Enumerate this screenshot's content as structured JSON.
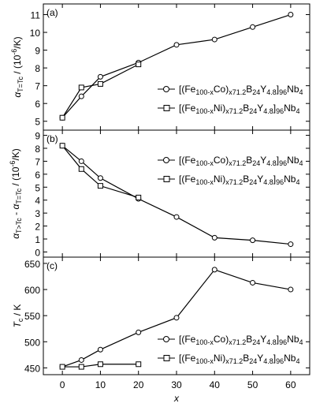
{
  "chart_data": [
    {
      "type": "line",
      "panel_label": "(a)",
      "ylabel": [
        {
          "text": "α",
          "style": "i"
        },
        {
          "text": "T=Tc",
          "style": "sub"
        },
        {
          "text": " / (10",
          "style": ""
        },
        {
          "text": "-6",
          "style": "sup"
        },
        {
          "text": "/K)",
          "style": ""
        }
      ],
      "xlim": [
        -5,
        65
      ],
      "xticks": [
        0,
        10,
        20,
        30,
        40,
        50,
        60
      ],
      "show_xtick_labels": false,
      "ylim": [
        4.5,
        11.6
      ],
      "yticks": [
        5,
        6,
        7,
        8,
        9,
        10,
        11
      ],
      "legend": "center right",
      "series": [
        {
          "name": [
            "[(Fe",
            "100-x",
            "Co)",
            "x71.2",
            "B",
            "24",
            "Y",
            "4.8",
            "]",
            "96",
            "Nb",
            "4"
          ],
          "color": "#000000",
          "marker": "circle",
          "x": [
            0,
            5,
            10,
            20,
            30,
            40,
            50,
            60
          ],
          "values": [
            5.2,
            6.4,
            7.5,
            8.3,
            9.3,
            9.6,
            10.3,
            11.0
          ]
        },
        {
          "name": [
            "[(Fe",
            "100-x",
            "Ni)",
            "x71.2",
            "B",
            "24",
            "Y",
            "4.8",
            "]",
            "96",
            "Nb",
            "4"
          ],
          "color": "#000000",
          "marker": "square",
          "x": [
            0,
            5,
            10,
            20
          ],
          "values": [
            5.2,
            6.9,
            7.1,
            8.2
          ]
        }
      ]
    },
    {
      "type": "line",
      "panel_label": "(b)",
      "ylabel": [
        {
          "text": "α",
          "style": "i"
        },
        {
          "text": "T>Tc",
          "style": "sub"
        },
        {
          "text": " - ",
          "style": ""
        },
        {
          "text": "α",
          "style": "i"
        },
        {
          "text": "T=Tc",
          "style": "sub"
        },
        {
          "text": " / (10",
          "style": ""
        },
        {
          "text": "-6",
          "style": "sup"
        },
        {
          "text": "/K)",
          "style": ""
        }
      ],
      "xlim": [
        -5,
        65
      ],
      "xticks": [
        0,
        10,
        20,
        30,
        40,
        50,
        60
      ],
      "show_xtick_labels": false,
      "ylim": [
        -0.4,
        9.4
      ],
      "yticks": [
        0,
        1,
        2,
        3,
        4,
        5,
        6,
        7,
        8,
        9
      ],
      "legend": "upper right",
      "series": [
        {
          "name": [
            "[(Fe",
            "100-x",
            "Co)",
            "x71.2",
            "B",
            "24",
            "Y",
            "4.8",
            "]",
            "96",
            "Nb",
            "4"
          ],
          "color": "#000000",
          "marker": "circle",
          "x": [
            0,
            5,
            10,
            20,
            30,
            40,
            50,
            60
          ],
          "values": [
            8.2,
            7.0,
            5.7,
            4.1,
            2.7,
            1.1,
            0.9,
            0.6
          ]
        },
        {
          "name": [
            "[(Fe",
            "100-x",
            "Ni)",
            "x71.2",
            "B",
            "24",
            "Y",
            "4.8",
            "]",
            "96",
            "Nb",
            "4"
          ],
          "color": "#000000",
          "marker": "square",
          "x": [
            0,
            5,
            10,
            20
          ],
          "values": [
            8.2,
            6.4,
            5.1,
            4.2
          ]
        }
      ]
    },
    {
      "type": "line",
      "panel_label": "(c)",
      "ylabel": [
        {
          "text": "T",
          "style": "i"
        },
        {
          "text": "c",
          "style": "sub"
        },
        {
          "text": " / K",
          "style": ""
        }
      ],
      "xlabel": "x",
      "xlim": [
        -5,
        65
      ],
      "xticks": [
        0,
        10,
        20,
        30,
        40,
        50,
        60
      ],
      "show_xtick_labels": true,
      "ylim": [
        437,
        662
      ],
      "yticks": [
        450,
        500,
        550,
        600,
        650
      ],
      "legend": "lower right",
      "series": [
        {
          "name": [
            "[(Fe",
            "100-x",
            "Co)",
            "x71.2",
            "B",
            "24",
            "Y",
            "4.8",
            "]",
            "96",
            "Nb",
            "4"
          ],
          "color": "#000000",
          "marker": "circle",
          "x": [
            0,
            5,
            10,
            20,
            30,
            40,
            50,
            60
          ],
          "values": [
            452,
            465,
            485,
            518,
            546,
            638,
            613,
            600
          ]
        },
        {
          "name": [
            "[(Fe",
            "100-x",
            "Ni)",
            "x71.2",
            "B",
            "24",
            "Y",
            "4.8",
            "]",
            "96",
            "Nb",
            "4"
          ],
          "color": "#000000",
          "marker": "square",
          "x": [
            0,
            5,
            10,
            20
          ],
          "values": [
            452,
            452,
            457,
            457
          ]
        }
      ]
    }
  ]
}
